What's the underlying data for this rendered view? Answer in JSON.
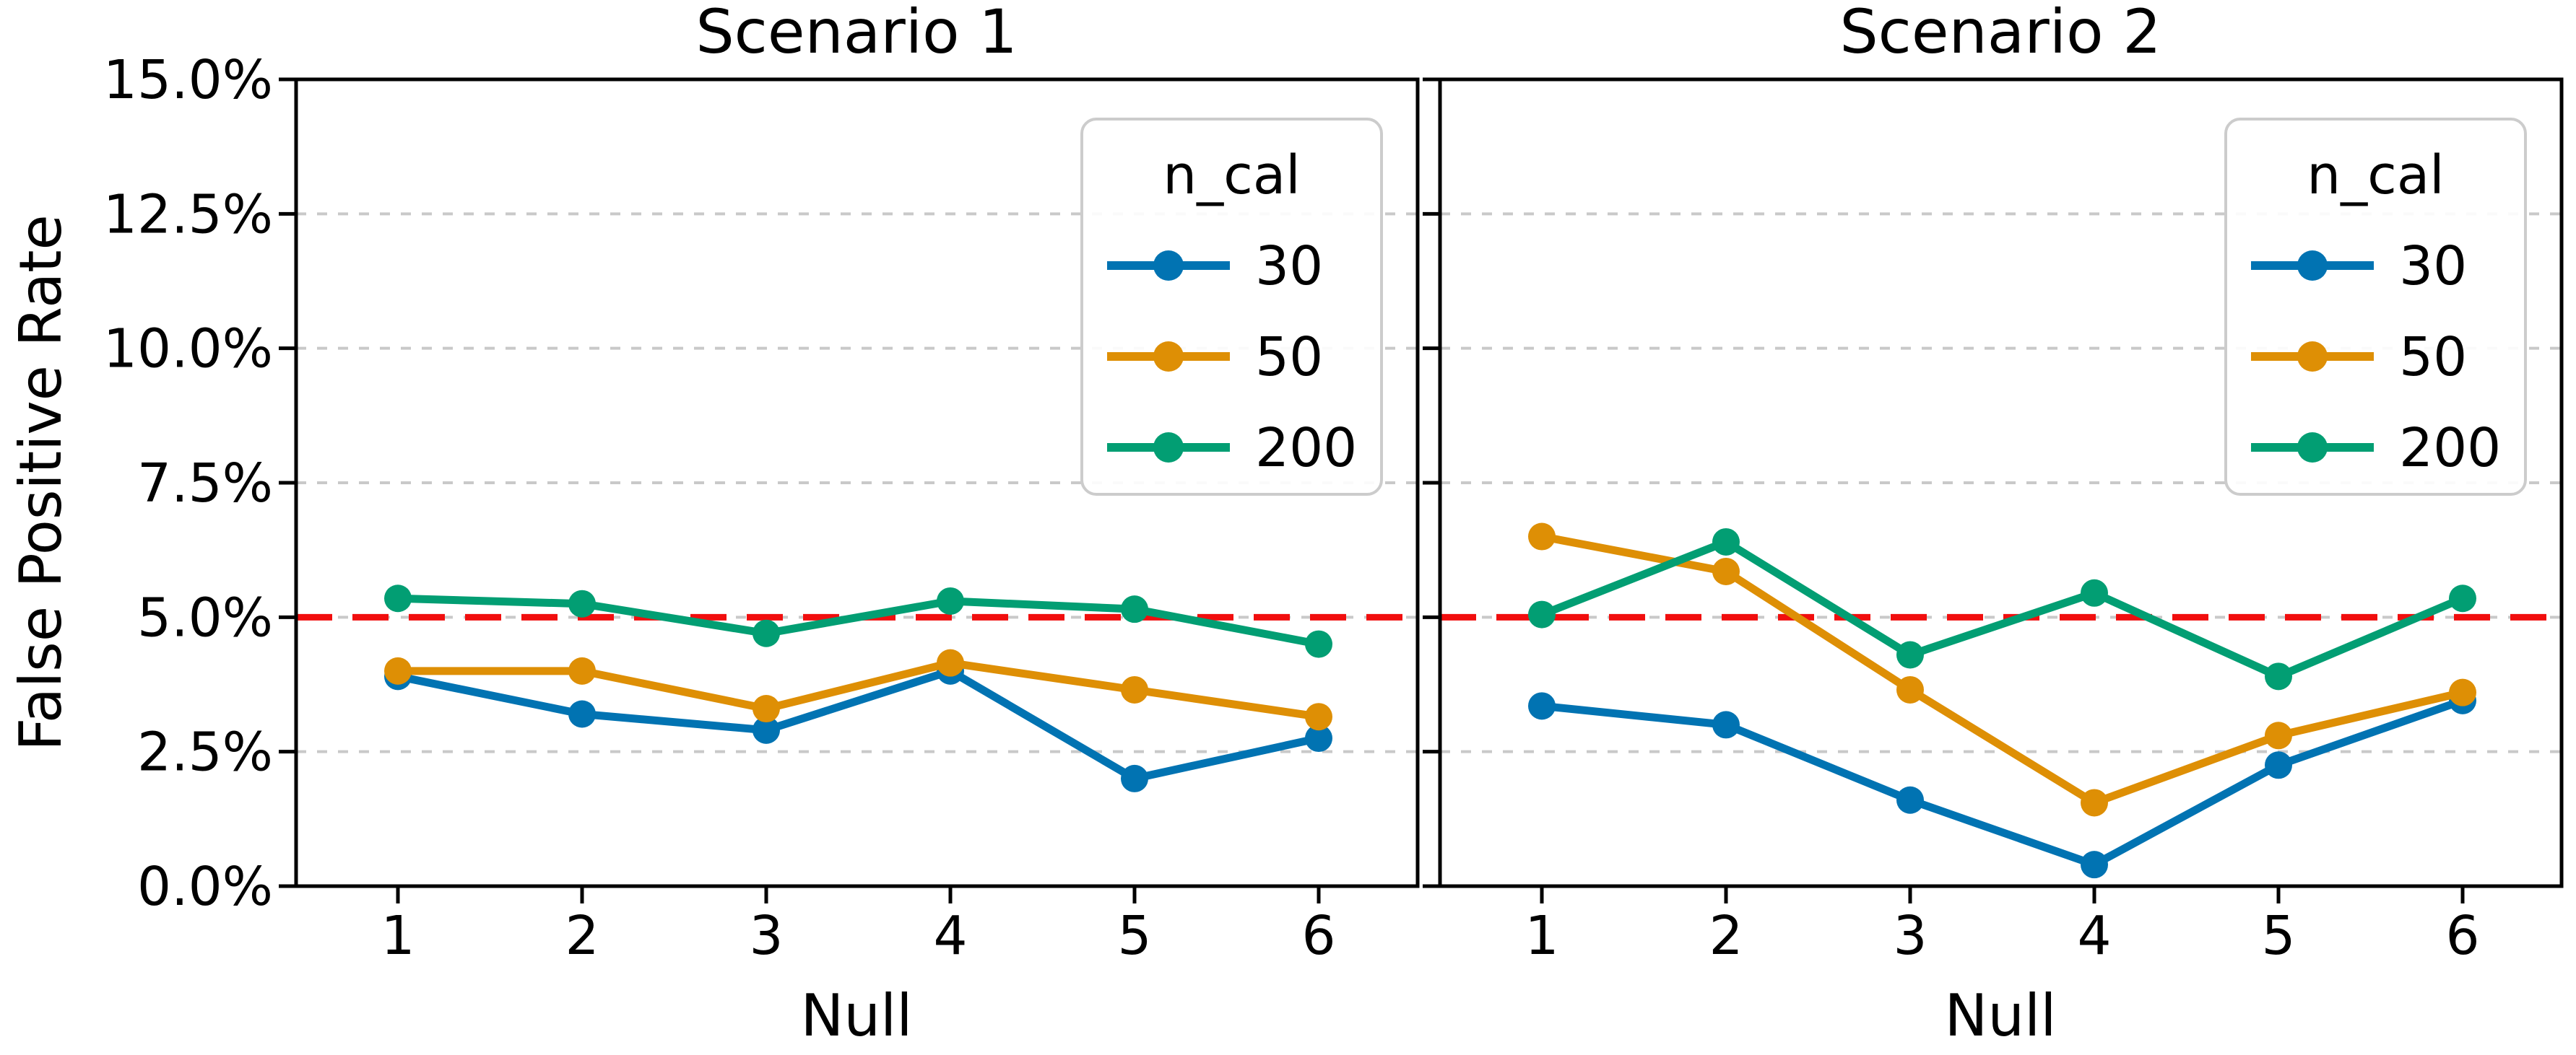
{
  "ylabel": "False Positive Rate",
  "colors": {
    "axis": "#000000",
    "grid": "#c9c9c9",
    "reference_red": "#f10e0e",
    "legend_border": "#cccccc",
    "background": "#ffffff"
  },
  "chart_data": [
    {
      "type": "line",
      "title": "Scenario 1",
      "xlabel": "Null",
      "ylabel": "False Positive Rate",
      "x": [
        1,
        2,
        3,
        4,
        5,
        6
      ],
      "xtick_labels": [
        "1",
        "2",
        "3",
        "4",
        "5",
        "6"
      ],
      "ylim": [
        0,
        15
      ],
      "ytick_values": [
        0,
        2.5,
        5,
        7.5,
        10,
        12.5,
        15
      ],
      "ytick_labels": [
        "0.0%",
        "2.5%",
        "5.0%",
        "7.5%",
        "10.0%",
        "12.5%",
        "15.0%"
      ],
      "grid": true,
      "reference_line": {
        "y": 5.0,
        "style": "dashed"
      },
      "legend": {
        "title": "n_cal",
        "position": "upper right"
      },
      "series": [
        {
          "name": "30",
          "color": "#0173b2",
          "values": [
            3.9,
            3.2,
            2.9,
            4.0,
            2.0,
            2.75
          ]
        },
        {
          "name": "50",
          "color": "#de8f05",
          "values": [
            4.0,
            4.0,
            3.3,
            4.15,
            3.65,
            3.15
          ]
        },
        {
          "name": "200",
          "color": "#029e73",
          "values": [
            5.35,
            5.25,
            4.7,
            5.3,
            5.15,
            4.5
          ]
        }
      ]
    },
    {
      "type": "line",
      "title": "Scenario 2",
      "xlabel": "Null",
      "ylabel": "False Positive Rate",
      "x": [
        1,
        2,
        3,
        4,
        5,
        6
      ],
      "xtick_labels": [
        "1",
        "2",
        "3",
        "4",
        "5",
        "6"
      ],
      "ylim": [
        0,
        15
      ],
      "ytick_values": [
        0,
        2.5,
        5,
        7.5,
        10,
        12.5,
        15
      ],
      "ytick_labels": [
        "0.0%",
        "2.5%",
        "5.0%",
        "7.5%",
        "10.0%",
        "12.5%",
        "15.0%"
      ],
      "grid": true,
      "reference_line": {
        "y": 5.0,
        "style": "dashed"
      },
      "legend": {
        "title": "n_cal",
        "position": "upper right"
      },
      "series": [
        {
          "name": "30",
          "color": "#0173b2",
          "values": [
            3.35,
            3.0,
            1.6,
            0.4,
            2.25,
            3.45
          ]
        },
        {
          "name": "50",
          "color": "#de8f05",
          "values": [
            6.5,
            5.85,
            3.65,
            1.55,
            2.8,
            3.6
          ]
        },
        {
          "name": "200",
          "color": "#029e73",
          "values": [
            5.05,
            6.4,
            4.3,
            5.45,
            3.9,
            5.35
          ]
        }
      ]
    }
  ]
}
